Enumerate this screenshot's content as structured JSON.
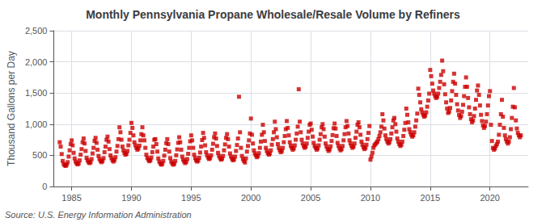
{
  "chart_data": {
    "type": "scatter",
    "title": "Monthly Pennsylvania Propane Wholesale/Resale Volume by Refiners",
    "ylabel": "Thousand Gallons per Day",
    "annotations": [
      "Source: U.S. Energy Information Administration"
    ],
    "color": "#cc0000",
    "marker": "square",
    "grid": true,
    "xlim": [
      1983.5,
      2023.2
    ],
    "xticks": [
      1985,
      1990,
      1995,
      2000,
      2005,
      2010,
      2015,
      2020
    ],
    "ylim": [
      0,
      2500
    ],
    "yticks": [
      0,
      500,
      {
        "value": 1000,
        "label": "1,000"
      },
      {
        "value": 1500,
        "label": "1,500"
      },
      {
        "value": 2000,
        "label": "2,000"
      },
      {
        "value": 2500,
        "label": "2,500"
      }
    ],
    "x": [
      1984.0,
      1984.083,
      1984.167,
      1984.25,
      1984.333,
      1984.417,
      1984.5,
      1984.583,
      1984.667,
      1984.75,
      1984.833,
      1984.917,
      1985.0,
      1985.083,
      1985.167,
      1985.25,
      1985.333,
      1985.417,
      1985.5,
      1985.583,
      1985.667,
      1985.75,
      1985.833,
      1985.917,
      1986.0,
      1986.083,
      1986.167,
      1986.25,
      1986.333,
      1986.417,
      1986.5,
      1986.583,
      1986.667,
      1986.75,
      1986.833,
      1986.917,
      1987.0,
      1987.083,
      1987.167,
      1987.25,
      1987.333,
      1987.417,
      1987.5,
      1987.583,
      1987.667,
      1987.75,
      1987.833,
      1987.917,
      1988.0,
      1988.083,
      1988.167,
      1988.25,
      1988.333,
      1988.417,
      1988.5,
      1988.583,
      1988.667,
      1988.75,
      1988.833,
      1988.917,
      1989.0,
      1989.083,
      1989.167,
      1989.25,
      1989.333,
      1989.417,
      1989.5,
      1989.583,
      1989.667,
      1989.75,
      1989.833,
      1989.917,
      1990.0,
      1990.083,
      1990.167,
      1990.25,
      1990.333,
      1990.417,
      1990.5,
      1990.583,
      1990.667,
      1990.75,
      1990.833,
      1990.917,
      1991.0,
      1991.083,
      1991.167,
      1991.25,
      1991.333,
      1991.417,
      1991.5,
      1991.583,
      1991.667,
      1991.75,
      1991.833,
      1991.917,
      1992.0,
      1992.083,
      1992.167,
      1992.25,
      1992.333,
      1992.417,
      1992.5,
      1992.583,
      1992.667,
      1992.75,
      1992.833,
      1992.917,
      1993.0,
      1993.083,
      1993.167,
      1993.25,
      1993.333,
      1993.417,
      1993.5,
      1993.583,
      1993.667,
      1993.75,
      1993.833,
      1993.917,
      1994.0,
      1994.083,
      1994.167,
      1994.25,
      1994.333,
      1994.417,
      1994.5,
      1994.583,
      1994.667,
      1994.75,
      1994.833,
      1994.917,
      1995.0,
      1995.083,
      1995.167,
      1995.25,
      1995.333,
      1995.417,
      1995.5,
      1995.583,
      1995.667,
      1995.75,
      1995.833,
      1995.917,
      1996.0,
      1996.083,
      1996.167,
      1996.25,
      1996.333,
      1996.417,
      1996.5,
      1996.583,
      1996.667,
      1996.75,
      1996.833,
      1996.917,
      1997.0,
      1997.083,
      1997.167,
      1997.25,
      1997.333,
      1997.417,
      1997.5,
      1997.583,
      1997.667,
      1997.75,
      1997.833,
      1997.917,
      1998.0,
      1998.083,
      1998.167,
      1998.25,
      1998.333,
      1998.417,
      1998.5,
      1998.583,
      1998.667,
      1998.75,
      1998.833,
      1998.917,
      1999.0,
      1999.083,
      1999.167,
      1999.25,
      1999.333,
      1999.417,
      1999.5,
      1999.583,
      1999.667,
      1999.75,
      1999.833,
      1999.917,
      2000.0,
      2000.083,
      2000.167,
      2000.25,
      2000.333,
      2000.417,
      2000.5,
      2000.583,
      2000.667,
      2000.75,
      2000.833,
      2000.917,
      2001.0,
      2001.083,
      2001.167,
      2001.25,
      2001.333,
      2001.417,
      2001.5,
      2001.583,
      2001.667,
      2001.75,
      2001.833,
      2001.917,
      2002.0,
      2002.083,
      2002.167,
      2002.25,
      2002.333,
      2002.417,
      2002.5,
      2002.583,
      2002.667,
      2002.75,
      2002.833,
      2002.917,
      2003.0,
      2003.083,
      2003.167,
      2003.25,
      2003.333,
      2003.417,
      2003.5,
      2003.583,
      2003.667,
      2003.75,
      2003.833,
      2003.917,
      2004.0,
      2004.083,
      2004.167,
      2004.25,
      2004.333,
      2004.417,
      2004.5,
      2004.583,
      2004.667,
      2004.75,
      2004.833,
      2004.917,
      2005.0,
      2005.083,
      2005.167,
      2005.25,
      2005.333,
      2005.417,
      2005.5,
      2005.583,
      2005.667,
      2005.75,
      2005.833,
      2005.917,
      2006.0,
      2006.083,
      2006.167,
      2006.25,
      2006.333,
      2006.417,
      2006.5,
      2006.583,
      2006.667,
      2006.75,
      2006.833,
      2006.917,
      2007.0,
      2007.083,
      2007.167,
      2007.25,
      2007.333,
      2007.417,
      2007.5,
      2007.583,
      2007.667,
      2007.75,
      2007.833,
      2007.917,
      2008.0,
      2008.083,
      2008.167,
      2008.25,
      2008.333,
      2008.417,
      2008.5,
      2008.583,
      2008.667,
      2008.75,
      2008.833,
      2008.917,
      2009.0,
      2009.083,
      2009.167,
      2009.25,
      2009.333,
      2009.417,
      2009.5,
      2009.583,
      2009.667,
      2009.75,
      2009.833,
      2009.917,
      2010.0,
      2010.083,
      2010.167,
      2010.25,
      2010.333,
      2010.417,
      2010.5,
      2010.583,
      2010.667,
      2010.75,
      2010.833,
      2010.917,
      2011.0,
      2011.083,
      2011.167,
      2011.25,
      2011.333,
      2011.417,
      2011.5,
      2011.583,
      2011.667,
      2011.75,
      2011.833,
      2011.917,
      2012.0,
      2012.083,
      2012.167,
      2012.25,
      2012.333,
      2012.417,
      2012.5,
      2012.583,
      2012.667,
      2012.75,
      2012.833,
      2012.917,
      2013.0,
      2013.083,
      2013.167,
      2013.25,
      2013.333,
      2013.417,
      2013.5,
      2013.583,
      2013.667,
      2013.75,
      2013.833,
      2013.917,
      2014.0,
      2014.083,
      2014.167,
      2014.25,
      2014.333,
      2014.417,
      2014.5,
      2014.583,
      2014.667,
      2014.75,
      2014.833,
      2014.917,
      2015.0,
      2015.083,
      2015.167,
      2015.25,
      2015.333,
      2015.417,
      2015.5,
      2015.583,
      2015.667,
      2015.75,
      2015.833,
      2015.917,
      2016.0,
      2016.083,
      2016.167,
      2016.25,
      2016.333,
      2016.417,
      2016.5,
      2016.583,
      2016.667,
      2016.75,
      2016.833,
      2016.917,
      2017.0,
      2017.083,
      2017.167,
      2017.25,
      2017.333,
      2017.417,
      2017.5,
      2017.583,
      2017.667,
      2017.75,
      2017.833,
      2017.917,
      2018.0,
      2018.083,
      2018.167,
      2018.25,
      2018.333,
      2018.417,
      2018.5,
      2018.583,
      2018.667,
      2018.75,
      2018.833,
      2018.917,
      2019.0,
      2019.083,
      2019.167,
      2019.25,
      2019.333,
      2019.417,
      2019.5,
      2019.583,
      2019.667,
      2019.75,
      2019.833,
      2019.917,
      2020.0,
      2020.083,
      2020.167,
      2020.25,
      2020.333,
      2020.417,
      2020.5,
      2020.583,
      2020.667,
      2020.75,
      2020.833,
      2020.917,
      2021.0,
      2021.083,
      2021.167,
      2021.25,
      2021.333,
      2021.417,
      2021.5,
      2021.583,
      2021.667,
      2021.75,
      2021.833,
      2021.917,
      2022.0,
      2022.083,
      2022.167,
      2022.25,
      2022.333,
      2022.417,
      2022.5,
      2022.583
    ],
    "values": [
      710,
      640,
      520,
      410,
      360,
      340,
      330,
      350,
      390,
      480,
      580,
      680,
      740,
      660,
      540,
      450,
      400,
      370,
      355,
      370,
      420,
      510,
      600,
      710,
      770,
      690,
      570,
      460,
      420,
      390,
      375,
      390,
      440,
      530,
      620,
      730,
      780,
      700,
      590,
      490,
      440,
      410,
      390,
      410,
      455,
      550,
      640,
      750,
      800,
      720,
      600,
      500,
      455,
      420,
      400,
      425,
      470,
      560,
      650,
      760,
      950,
      870,
      750,
      640,
      580,
      540,
      510,
      525,
      570,
      660,
      750,
      860,
      1020,
      940,
      820,
      710,
      660,
      620,
      590,
      610,
      655,
      740,
      840,
      950,
      820,
      740,
      620,
      510,
      460,
      430,
      405,
      420,
      465,
      550,
      640,
      750,
      760,
      680,
      560,
      450,
      400,
      370,
      350,
      365,
      410,
      495,
      590,
      695,
      760,
      680,
      560,
      455,
      400,
      370,
      350,
      365,
      410,
      500,
      595,
      700,
      790,
      710,
      590,
      480,
      430,
      400,
      375,
      395,
      440,
      525,
      620,
      725,
      820,
      740,
      620,
      510,
      455,
      420,
      400,
      415,
      460,
      545,
      640,
      745,
      860,
      780,
      660,
      550,
      500,
      465,
      440,
      455,
      500,
      590,
      685,
      790,
      850,
      770,
      650,
      540,
      490,
      455,
      430,
      445,
      490,
      580,
      675,
      780,
      840,
      760,
      640,
      530,
      480,
      445,
      420,
      435,
      480,
      570,
      665,
      770,
      1440,
      870,
      620,
      490,
      440,
      410,
      385,
      450,
      560,
      650,
      740,
      850,
      1090,
      830,
      690,
      580,
      530,
      500,
      470,
      490,
      535,
      620,
      720,
      830,
      990,
      870,
      730,
      620,
      570,
      535,
      510,
      530,
      580,
      670,
      760,
      870,
      1040,
      920,
      790,
      680,
      620,
      580,
      550,
      570,
      620,
      710,
      810,
      920,
      1050,
      940,
      820,
      710,
      655,
      620,
      590,
      610,
      660,
      750,
      850,
      960,
      1560,
      1040,
      870,
      750,
      690,
      650,
      620,
      640,
      690,
      780,
      880,
      990,
      1010,
      910,
      800,
      700,
      650,
      620,
      590,
      610,
      660,
      750,
      840,
      950,
      1000,
      920,
      800,
      690,
      640,
      600,
      570,
      595,
      645,
      730,
      825,
      935,
      1010,
      930,
      810,
      700,
      650,
      610,
      580,
      600,
      650,
      740,
      840,
      950,
      1050,
      970,
      850,
      740,
      690,
      650,
      620,
      640,
      690,
      780,
      880,
      990,
      1030,
      950,
      830,
      720,
      670,
      630,
      600,
      620,
      670,
      760,
      860,
      970,
      430,
      480,
      540,
      620,
      660,
      680,
      700,
      720,
      760,
      810,
      870,
      960,
      1160,
      1060,
      930,
      820,
      760,
      720,
      690,
      710,
      760,
      850,
      950,
      1060,
      1100,
      1000,
      880,
      770,
      720,
      680,
      650,
      670,
      720,
      810,
      910,
      1020,
      1250,
      1150,
      1030,
      920,
      870,
      830,
      800,
      820,
      870,
      960,
      1060,
      1170,
      1570,
      1470,
      1350,
      1240,
      1190,
      1150,
      1120,
      1140,
      1190,
      1280,
      1380,
      1490,
      1870,
      1770,
      1650,
      1540,
      1490,
      1450,
      1420,
      1440,
      1490,
      1580,
      1680,
      1790,
      2020,
      1850,
      1640,
      1480,
      1350,
      1250,
      1180,
      1200,
      1260,
      1380,
      1530,
      1680,
      1810,
      1650,
      1470,
      1320,
      1220,
      1150,
      1100,
      1130,
      1200,
      1310,
      1450,
      1600,
      1750,
      1600,
      1420,
      1270,
      1160,
      1080,
      1030,
      1060,
      1130,
      1250,
      1390,
      1540,
      1620,
      1470,
      1300,
      1150,
      1050,
      980,
      940,
      970,
      1040,
      1160,
      1300,
      1450,
      1530,
      990,
      730,
      620,
      590,
      610,
      650,
      680,
      720,
      830,
      990,
      1160,
      1390,
      1120,
      940,
      820,
      760,
      720,
      690,
      720,
      790,
      920,
      1100,
      1280,
      1580,
      1270,
      1060,
      930,
      860,
      820,
      790,
      820
    ]
  }
}
